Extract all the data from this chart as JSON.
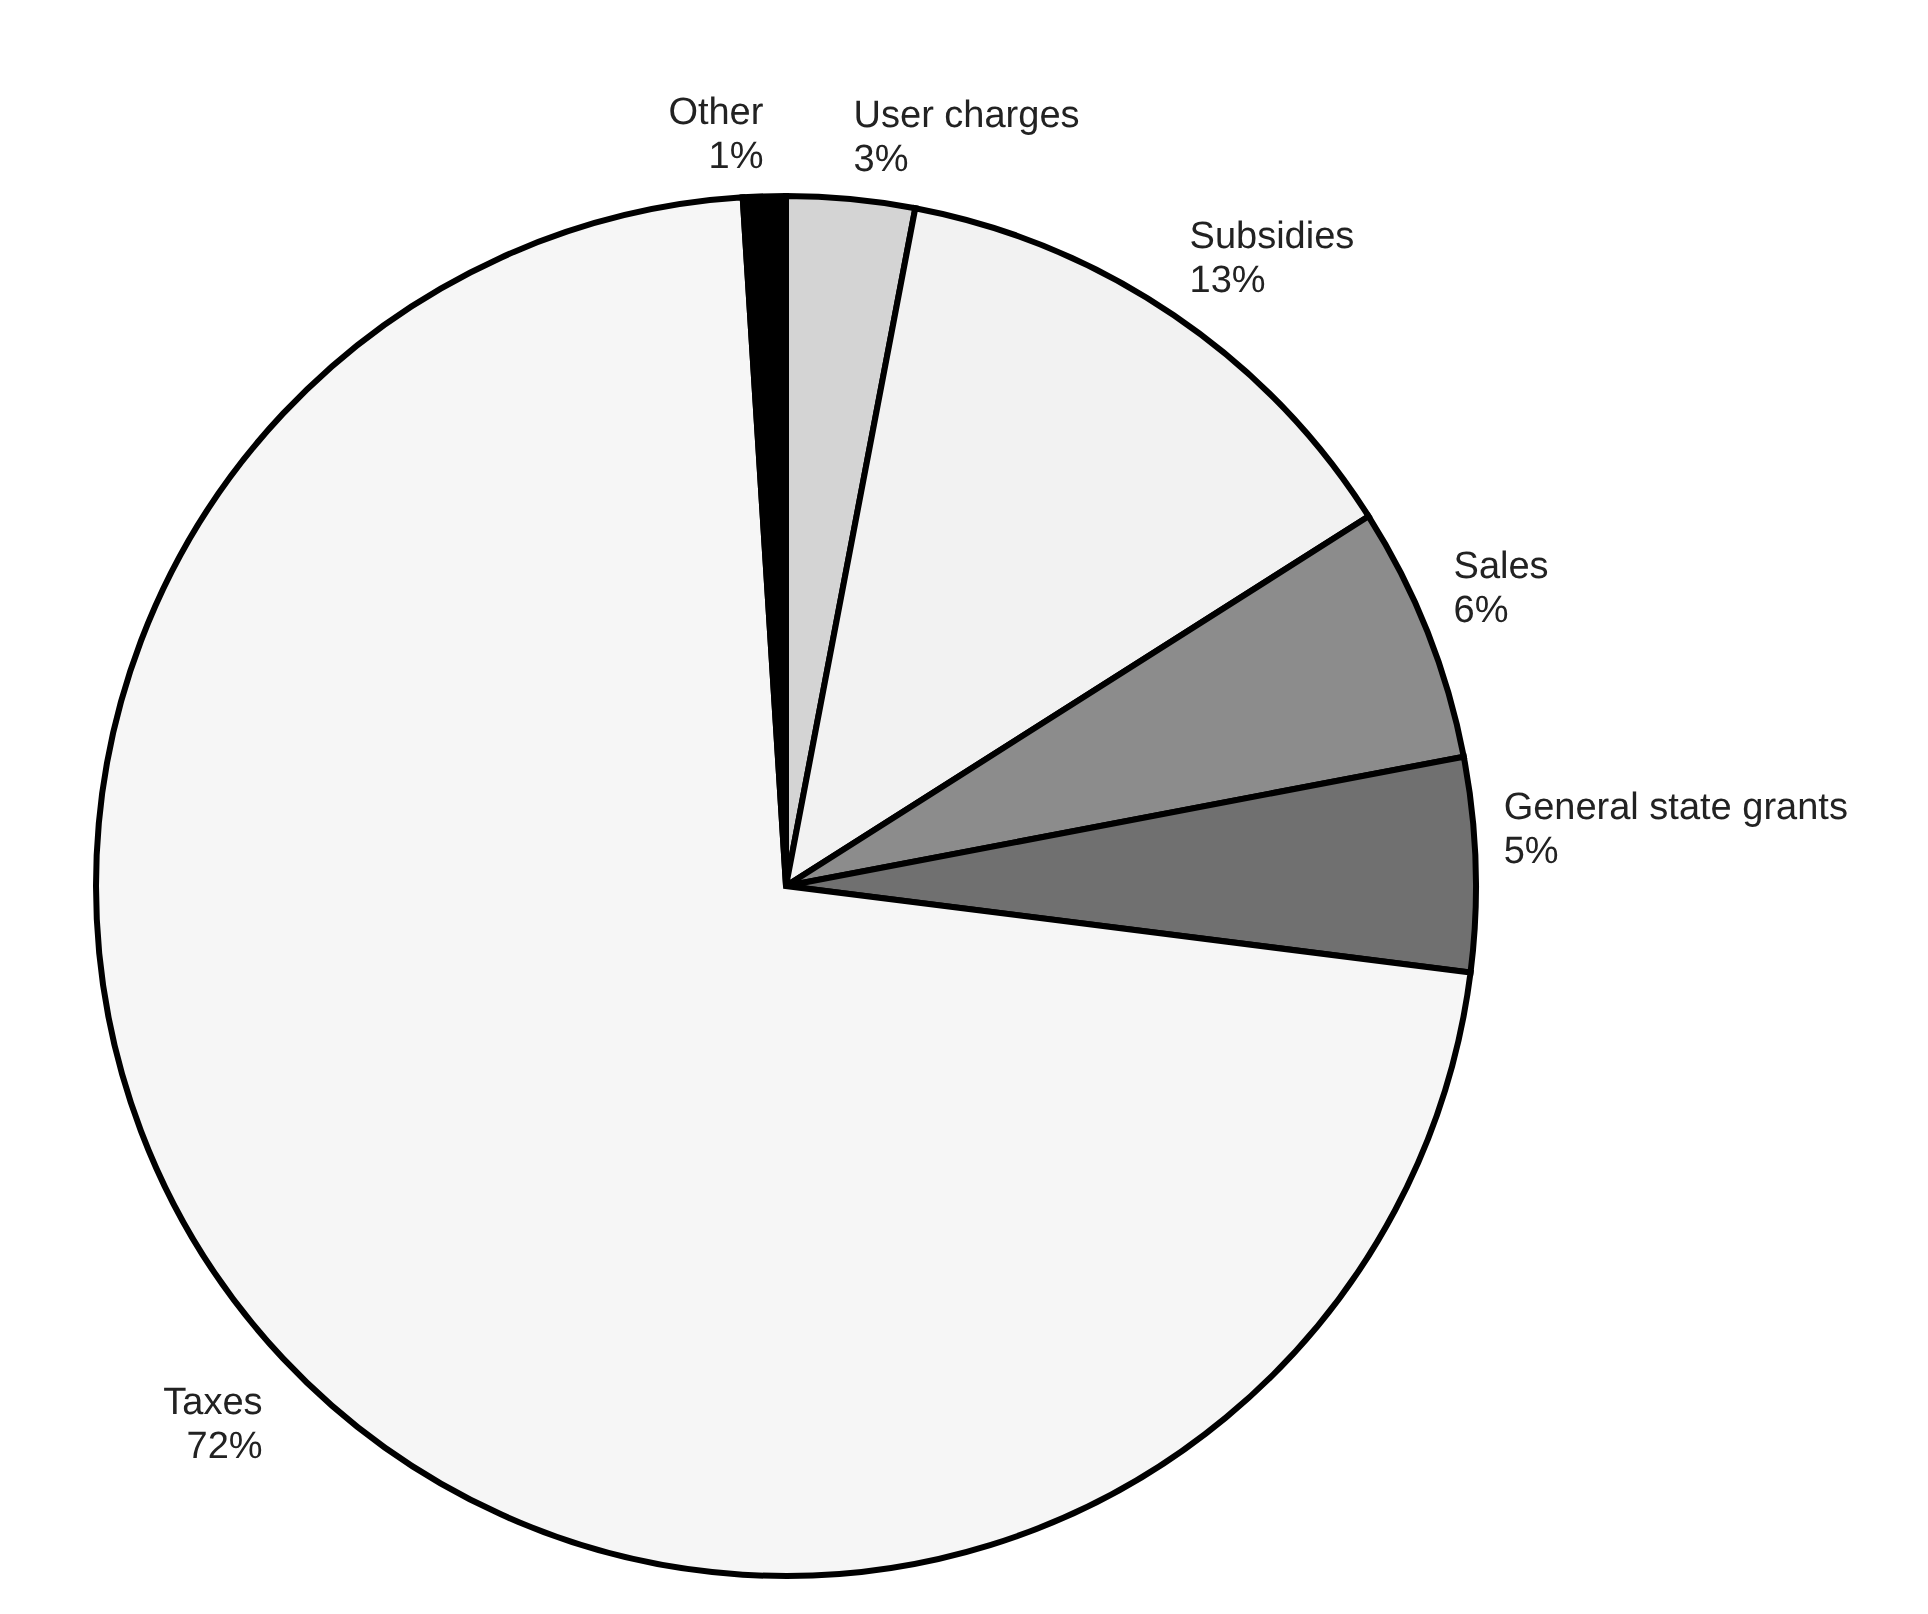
{
  "chart_data": {
    "type": "pie",
    "categories": [
      "User charges",
      "Subsidies",
      "Sales",
      "General state grants",
      "Taxes",
      "Other"
    ],
    "values": [
      3,
      13,
      6,
      5,
      72,
      1
    ],
    "value_labels": [
      "3%",
      "13%",
      "6%",
      "5%",
      "72%",
      "1%"
    ],
    "colors": [
      "#d4d4d4",
      "#f2f2f2",
      "#8c8c8c",
      "#707070",
      "#f6f6f6",
      "#000000"
    ],
    "legend": false
  }
}
